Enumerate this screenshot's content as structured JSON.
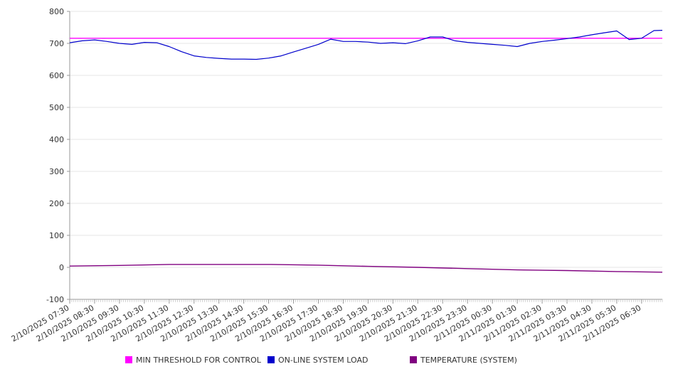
{
  "chart_data": {
    "type": "line",
    "title": "",
    "xlabel": "",
    "ylabel": "",
    "ylim": [
      -100,
      800
    ],
    "y_ticks": [
      "800",
      "700",
      "600",
      "500",
      "400",
      "300",
      "200",
      "100",
      "0",
      "-100"
    ],
    "x_tick_labels": [
      "2/10/2025 07:30",
      "2/10/2025 08:30",
      "2/10/2025 09:30",
      "2/10/2025 10:30",
      "2/10/2025 11:30",
      "2/10/2025 12:30",
      "2/10/2025 13:30",
      "2/10/2025 14:30",
      "2/10/2025 15:30",
      "2/10/2025 16:30",
      "2/10/2025 17:30",
      "2/10/2025 18:30",
      "2/10/2025 19:30",
      "2/10/2025 20:30",
      "2/10/2025 21:30",
      "2/10/2025 22:30",
      "2/10/2025 23:30",
      "2/11/2025 00:30",
      "2/11/2025 01:30",
      "2/11/2025 02:30",
      "2/11/2025 03:30",
      "2/11/2025 04:30",
      "2/11/2025 05:30",
      "2/11/2025 06:30"
    ],
    "grid": true,
    "legend_position": "bottom",
    "series": [
      {
        "name": "MIN THRESHOLD FOR CONTROL",
        "color": "#ff00ff",
        "x": [
          "2/10/2025 07:30",
          "2/11/2025 07:20"
        ],
        "values": [
          716,
          716
        ]
      },
      {
        "name": "ON-LINE SYSTEM LOAD",
        "color": "#0000cc",
        "x": [
          "2/10/2025 07:30",
          "2/10/2025 08:00",
          "2/10/2025 08:30",
          "2/10/2025 09:00",
          "2/10/2025 09:30",
          "2/10/2025 10:00",
          "2/10/2025 10:30",
          "2/10/2025 11:00",
          "2/10/2025 11:30",
          "2/10/2025 12:00",
          "2/10/2025 12:30",
          "2/10/2025 13:00",
          "2/10/2025 13:30",
          "2/10/2025 14:00",
          "2/10/2025 14:30",
          "2/10/2025 15:00",
          "2/10/2025 15:30",
          "2/10/2025 16:00",
          "2/10/2025 16:30",
          "2/10/2025 17:00",
          "2/10/2025 17:30",
          "2/10/2025 18:00",
          "2/10/2025 18:30",
          "2/10/2025 19:00",
          "2/10/2025 19:30",
          "2/10/2025 20:00",
          "2/10/2025 20:30",
          "2/10/2025 21:00",
          "2/10/2025 21:30",
          "2/10/2025 22:00",
          "2/10/2025 22:30",
          "2/10/2025 23:00",
          "2/10/2025 23:30",
          "2/11/2025 00:00",
          "2/11/2025 00:30",
          "2/11/2025 01:00",
          "2/11/2025 01:30",
          "2/11/2025 02:00",
          "2/11/2025 02:30",
          "2/11/2025 03:00",
          "2/11/2025 03:30",
          "2/11/2025 04:00",
          "2/11/2025 04:30",
          "2/11/2025 05:00",
          "2/11/2025 05:30",
          "2/11/2025 06:00",
          "2/11/2025 06:30",
          "2/11/2025 07:00",
          "2/11/2025 07:20"
        ],
        "values": [
          702,
          708,
          711,
          706,
          700,
          697,
          703,
          702,
          690,
          674,
          661,
          656,
          653,
          651,
          651,
          650,
          654,
          661,
          673,
          685,
          697,
          713,
          706,
          706,
          704,
          700,
          702,
          699,
          708,
          720,
          720,
          708,
          703,
          700,
          697,
          694,
          690,
          700,
          706,
          710,
          715,
          720,
          727,
          733,
          739,
          712,
          716,
          740,
          741
        ]
      },
      {
        "name": "TEMPERATURE (SYSTEM)",
        "color": "#800080",
        "x": [
          "2/10/2025 07:30",
          "2/10/2025 09:30",
          "2/10/2025 11:30",
          "2/10/2025 13:30",
          "2/10/2025 15:30",
          "2/10/2025 17:30",
          "2/10/2025 19:30",
          "2/10/2025 21:30",
          "2/10/2025 23:30",
          "2/11/2025 01:30",
          "2/11/2025 03:30",
          "2/11/2025 05:30",
          "2/11/2025 07:20"
        ],
        "values": [
          4,
          6,
          9,
          9,
          9,
          7,
          3,
          0,
          -4,
          -8,
          -10,
          -13,
          -15
        ]
      }
    ]
  }
}
